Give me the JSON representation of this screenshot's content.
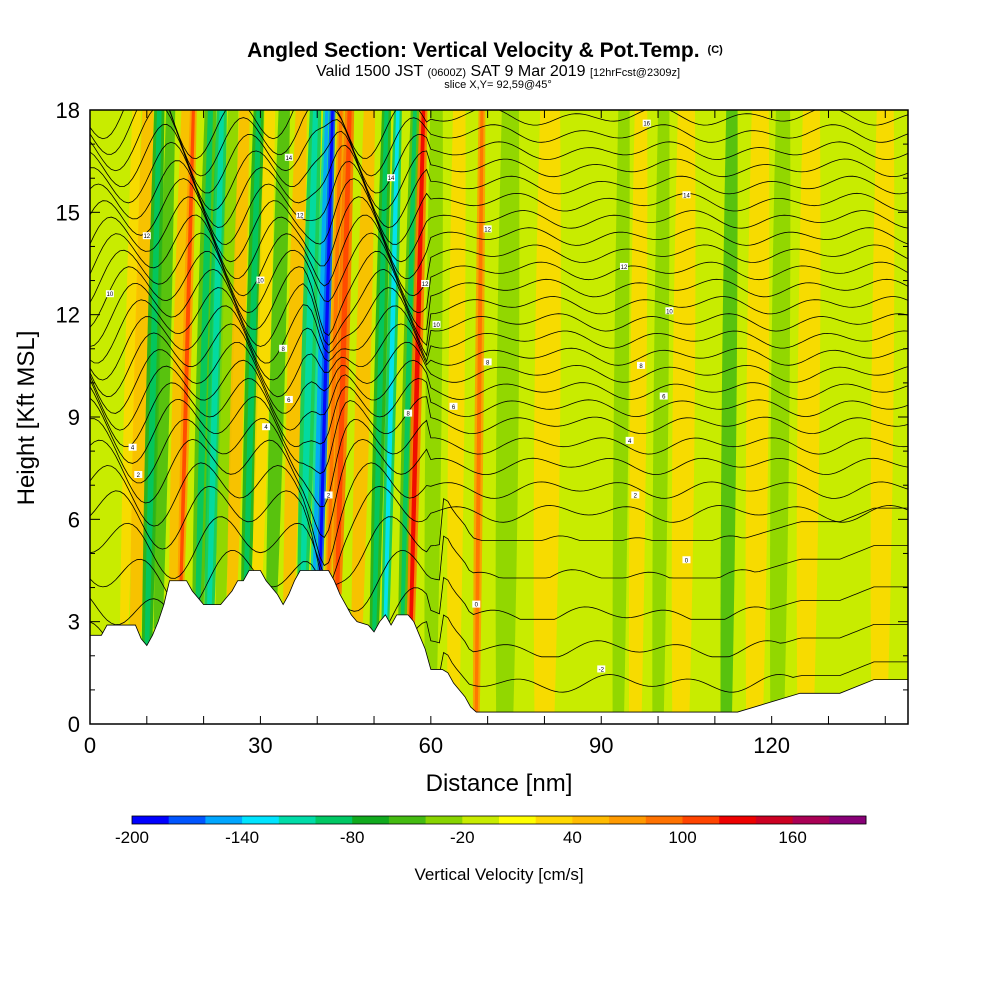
{
  "chart_data": {
    "type": "heatmap",
    "title": "Angled Section: Vertical Velocity & Pot.Temp.",
    "title_suffix": "(C)",
    "subtitle": {
      "valid_prefix": "Valid 1500 JST",
      "utc": "(0600Z)",
      "date": "SAT 9 Mar 2019",
      "forecast": "[12hrFcst@2309z]"
    },
    "slice_text": "slice X,Y= 92,59@45°",
    "xlabel": "Distance [nm]",
    "ylabel": "Height [Kft MSL]",
    "xlim": [
      0,
      144
    ],
    "ylim": [
      0,
      18
    ],
    "xticks": [
      0,
      30,
      60,
      90,
      120
    ],
    "yticks": [
      0,
      3,
      6,
      9,
      12,
      15,
      18
    ],
    "colorbar": {
      "label": "Vertical Velocity [cm/s]",
      "tick_values": [
        -200,
        -140,
        -80,
        -20,
        40,
        100,
        160
      ],
      "tick_labels": [
        "-200",
        "-140",
        "-80",
        "-20",
        "40",
        "100",
        "160"
      ],
      "levels": [
        -200,
        -180,
        -160,
        -140,
        -120,
        -100,
        -80,
        -60,
        -40,
        -20,
        0,
        20,
        40,
        60,
        80,
        100,
        120,
        140,
        160,
        180,
        200
      ],
      "colors": [
        "#0000ff",
        "#0055ff",
        "#00a6ff",
        "#00e4ff",
        "#00dca8",
        "#00c864",
        "#11aa1e",
        "#44bb11",
        "#88d400",
        "#c8ec00",
        "#ffff00",
        "#ffd800",
        "#ffbb00",
        "#ff9a00",
        "#ff7200",
        "#ff4400",
        "#ee0000",
        "#cc0022",
        "#aa0055",
        "#880077"
      ]
    },
    "terrain_profile": {
      "x": [
        0,
        2,
        3,
        8,
        9,
        10,
        11,
        12,
        13,
        14,
        17,
        18,
        19,
        20,
        23,
        24,
        25,
        26,
        27,
        28,
        30,
        31,
        33,
        34,
        35,
        36,
        37,
        38,
        42,
        43,
        44,
        45,
        46,
        47,
        49,
        50,
        51,
        52,
        53,
        54,
        55,
        56,
        57,
        58,
        59,
        60,
        61,
        62,
        63,
        64,
        65,
        66,
        67,
        68,
        69,
        70,
        72,
        80,
        90,
        95,
        100,
        110,
        113,
        114,
        125,
        128,
        132,
        138,
        139,
        144
      ],
      "y": [
        2.6,
        2.6,
        2.9,
        2.9,
        2.5,
        2.3,
        2.6,
        3.0,
        3.5,
        4.2,
        4.2,
        3.9,
        3.7,
        3.5,
        3.5,
        3.7,
        3.9,
        4.2,
        4.2,
        4.5,
        4.5,
        4.2,
        3.8,
        3.5,
        3.8,
        4.2,
        4.5,
        4.5,
        4.5,
        4.2,
        3.8,
        3.5,
        3.2,
        3.0,
        2.9,
        2.7,
        3.0,
        3.2,
        2.9,
        3.2,
        3.2,
        3.2,
        3.0,
        2.6,
        2.2,
        1.6,
        1.6,
        1.6,
        1.5,
        1.2,
        1.0,
        0.8,
        0.5,
        0.35,
        0.35,
        0.35,
        0.35,
        0.35,
        0.35,
        0.35,
        0.35,
        0.35,
        0.35,
        0.35,
        0.9,
        0.9,
        0.9,
        1.3,
        1.3,
        1.3
      ]
    },
    "vertical_velocity_bands": [
      {
        "x": 6,
        "w": 1.5,
        "value": 25
      },
      {
        "x": 8,
        "w": 2.0,
        "value": 45
      },
      {
        "x": 10,
        "w": 1.8,
        "value": -70
      },
      {
        "x": 12,
        "w": 1.6,
        "value": -45
      },
      {
        "x": 15,
        "w": 2.2,
        "value": 55
      },
      {
        "x": 16,
        "w": 1.2,
        "value": 75
      },
      {
        "x": 19,
        "w": 2.0,
        "value": -60
      },
      {
        "x": 21,
        "w": 1.8,
        "value": -90
      },
      {
        "x": 23,
        "w": 1.8,
        "value": -35
      },
      {
        "x": 25,
        "w": 1.8,
        "value": 45
      },
      {
        "x": 27.5,
        "w": 1.8,
        "value": -75
      },
      {
        "x": 29.5,
        "w": 1.8,
        "value": 35
      },
      {
        "x": 32,
        "w": 2.0,
        "value": -45
      },
      {
        "x": 35,
        "w": 2.0,
        "value": 50
      },
      {
        "x": 37.5,
        "w": 2.0,
        "value": -85
      },
      {
        "x": 39.5,
        "w": 1.3,
        "value": -120
      },
      {
        "x": 40.5,
        "w": 1.0,
        "value": -170
      },
      {
        "x": 42,
        "w": 1.2,
        "value": 60
      },
      {
        "x": 43.5,
        "w": 1.6,
        "value": 85
      },
      {
        "x": 47,
        "w": 2.0,
        "value": 45
      },
      {
        "x": 50,
        "w": 1.6,
        "value": -70
      },
      {
        "x": 52,
        "w": 1.4,
        "value": -100
      },
      {
        "x": 55,
        "w": 1.5,
        "value": -60
      },
      {
        "x": 56.5,
        "w": 1.4,
        "value": 95
      },
      {
        "x": 60,
        "w": 2.2,
        "value": -40
      },
      {
        "x": 64,
        "w": 2.2,
        "value": 35
      },
      {
        "x": 68,
        "w": 1.2,
        "value": 70
      },
      {
        "x": 73,
        "w": 3.0,
        "value": -25
      },
      {
        "x": 80,
        "w": 3.5,
        "value": 25
      },
      {
        "x": 85,
        "w": 3.0,
        "value": -20
      },
      {
        "x": 93,
        "w": 2.0,
        "value": -40
      },
      {
        "x": 96,
        "w": 2.2,
        "value": 30
      },
      {
        "x": 100,
        "w": 2.0,
        "value": -35
      },
      {
        "x": 104,
        "w": 3.0,
        "value": 25
      },
      {
        "x": 112,
        "w": 2.0,
        "value": -45
      },
      {
        "x": 117,
        "w": 3.0,
        "value": 35
      },
      {
        "x": 121,
        "w": 2.5,
        "value": -30
      },
      {
        "x": 126,
        "w": 3.0,
        "value": 25
      },
      {
        "x": 133,
        "w": 3.0,
        "value": -20
      },
      {
        "x": 139,
        "w": 3.0,
        "value": 20
      }
    ],
    "pot_temp_isentropes": {
      "base_levels_kft": [
        1.2,
        2.2,
        3.2,
        4.3,
        5.3,
        6.2,
        6.9,
        7.6,
        8.2,
        8.8,
        9.3,
        9.8,
        10.3,
        10.8,
        11.3,
        11.8,
        12.3,
        12.8,
        13.3,
        13.8,
        14.3,
        14.8,
        15.3,
        15.8,
        16.3,
        16.8,
        17.3,
        17.8
      ],
      "contour_labels": [
        {
          "x": 3.5,
          "y": 12.6,
          "text": "10"
        },
        {
          "x": 10,
          "y": 14.3,
          "text": "12"
        },
        {
          "x": 7.5,
          "y": 8.1,
          "text": "4"
        },
        {
          "x": 8.5,
          "y": 7.3,
          "text": "2"
        },
        {
          "x": 35,
          "y": 16.6,
          "text": "14"
        },
        {
          "x": 37,
          "y": 14.9,
          "text": "12"
        },
        {
          "x": 30,
          "y": 13.0,
          "text": "10"
        },
        {
          "x": 34,
          "y": 11.0,
          "text": "8"
        },
        {
          "x": 35,
          "y": 9.5,
          "text": "6"
        },
        {
          "x": 31,
          "y": 8.7,
          "text": "4"
        },
        {
          "x": 42,
          "y": 6.7,
          "text": "2"
        },
        {
          "x": 53,
          "y": 16.0,
          "text": "14"
        },
        {
          "x": 59,
          "y": 12.9,
          "text": "12"
        },
        {
          "x": 61,
          "y": 11.7,
          "text": "10"
        },
        {
          "x": 56,
          "y": 9.1,
          "text": "8"
        },
        {
          "x": 64,
          "y": 9.3,
          "text": "6"
        },
        {
          "x": 70,
          "y": 10.6,
          "text": "8"
        },
        {
          "x": 70,
          "y": 14.5,
          "text": "12"
        },
        {
          "x": 68,
          "y": 3.5,
          "text": "0"
        },
        {
          "x": 90,
          "y": 1.6,
          "text": "-2"
        },
        {
          "x": 98,
          "y": 17.6,
          "text": "16"
        },
        {
          "x": 105,
          "y": 15.5,
          "text": "14"
        },
        {
          "x": 94,
          "y": 13.4,
          "text": "12"
        },
        {
          "x": 102,
          "y": 12.1,
          "text": "10"
        },
        {
          "x": 97,
          "y": 10.5,
          "text": "8"
        },
        {
          "x": 101,
          "y": 9.6,
          "text": "6"
        },
        {
          "x": 95,
          "y": 8.3,
          "text": "4"
        },
        {
          "x": 96,
          "y": 6.7,
          "text": "2"
        },
        {
          "x": 105,
          "y": 4.8,
          "text": "0"
        }
      ]
    },
    "grid": false,
    "legend": "bottom"
  }
}
